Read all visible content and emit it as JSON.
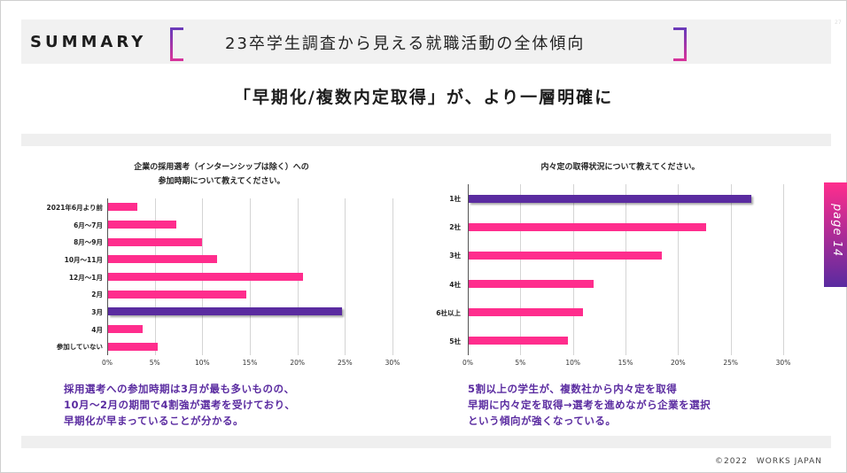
{
  "header": {
    "label": "SUMMARY",
    "title": "23卒学生調査から見える就職活動の全体傾向"
  },
  "headline": "「早期化/複数内定取得」が、より一層明確に",
  "page_tab": "page 14",
  "corner_mark": "27",
  "chart_data": [
    {
      "type": "bar",
      "orientation": "horizontal",
      "title_lines": [
        "企業の採用選考（インターンシップは除く）への",
        "参加時期について教えてください。"
      ],
      "categories": [
        "2021年6月より前",
        "6月～7月",
        "8月～9月",
        "10月～11月",
        "12月～1月",
        "2月",
        "3月",
        "4月",
        "参加していない"
      ],
      "values": [
        3.1,
        7.2,
        9.9,
        11.5,
        20.5,
        14.5,
        24.6,
        3.6,
        5.2
      ],
      "highlight_index": 6,
      "xlim": [
        0,
        30
      ],
      "ticks": [
        "0%",
        "5%",
        "10%",
        "15%",
        "20%",
        "25%",
        "30%"
      ],
      "colors": {
        "bar": "#ff2d8d",
        "highlight": "#5a2ba0"
      }
    },
    {
      "type": "bar",
      "orientation": "horizontal",
      "title_lines": [
        "内々定の取得状況について教えてください。"
      ],
      "categories": [
        "1社",
        "2社",
        "3社",
        "4社",
        "6社以上",
        "5社"
      ],
      "values": [
        26.9,
        22.6,
        18.4,
        11.9,
        10.9,
        9.4
      ],
      "highlight_index": 0,
      "xlim": [
        0,
        30
      ],
      "ticks": [
        "0%",
        "5%",
        "10%",
        "15%",
        "20%",
        "25%",
        "30%"
      ],
      "colors": {
        "bar": "#ff2d8d",
        "highlight": "#5a2ba0"
      }
    }
  ],
  "notes": {
    "left": [
      "採用選考への参加時期は3月が最も多いものの、",
      "10月～2月の期間で4割強が選考を受けており、",
      "早期化が早まっていることが分かる。"
    ],
    "right": [
      "5割以上の学生が、複数社から内々定を取得",
      "早期に内々定を取得→選考を進めながら企業を選択",
      "という傾向が強くなっている。"
    ]
  },
  "footer": {
    "copyright": "©2022　WORKS JAPAN"
  }
}
